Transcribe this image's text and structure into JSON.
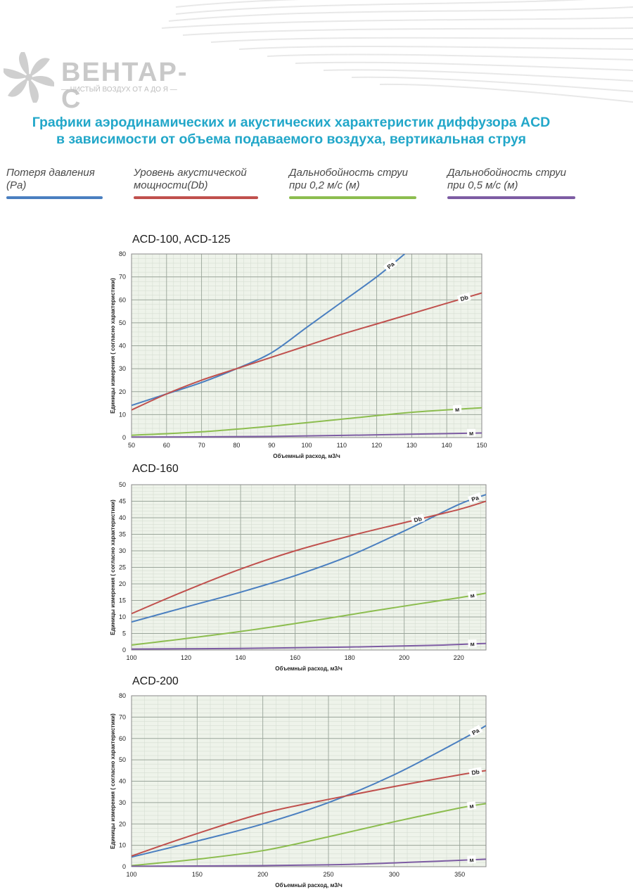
{
  "brand": {
    "name": "ВЕНТАР-С",
    "tagline": "— ЧИСТЫЙ ВОЗДУХ ОТ А ДО Я —"
  },
  "title": {
    "line1": "Графики аэродинамических и акустических характеристик диффузора ACD",
    "line2": "в зависимости от объема подаваемого воздуха, вертикальная струя"
  },
  "legend": [
    {
      "line1": "Потеря давления",
      "line2": "(Pa)",
      "color": "#4a7fc0"
    },
    {
      "line1": "Уровень акустической",
      "line2": "мощности(Db)",
      "color": "#c0504d"
    },
    {
      "line1": "Дальнобойность струи",
      "line2": "при 0,2 м/с (м)",
      "color": "#8cbd4f"
    },
    {
      "line1": "Дальнобойность струи",
      "line2": "при 0,5 м/с (м)",
      "color": "#7d5ca3"
    }
  ],
  "chart_data": [
    {
      "type": "line",
      "title": "ACD-100, ACD-125",
      "xlabel": "Объемный расход, м3/ч",
      "ylabel": "Единицы измерения ( согласно характеристики)",
      "xlim": [
        50,
        150
      ],
      "ylim": [
        0,
        80
      ],
      "xticks": [
        50,
        60,
        70,
        80,
        90,
        100,
        110,
        120,
        130,
        140,
        150
      ],
      "yticks": [
        0,
        10,
        20,
        30,
        40,
        50,
        60,
        70,
        80
      ],
      "grid": true,
      "series": [
        {
          "name": "Pa",
          "color": "#4a7fc0",
          "label_x": 124,
          "x": [
            50,
            60,
            70,
            80,
            90,
            100,
            110,
            120,
            128
          ],
          "y": [
            14,
            19,
            24,
            30,
            37,
            48,
            59,
            70,
            80
          ]
        },
        {
          "name": "Db",
          "color": "#c0504d",
          "label_x": 145,
          "x": [
            50,
            60,
            70,
            80,
            90,
            100,
            110,
            120,
            130,
            140,
            150
          ],
          "y": [
            12,
            19,
            25,
            30,
            35,
            40,
            45,
            49.5,
            54,
            58.5,
            63
          ]
        },
        {
          "name": "м",
          "color": "#8cbd4f",
          "label_x": 143,
          "x": [
            50,
            70,
            90,
            110,
            130,
            150
          ],
          "y": [
            1,
            2.5,
            5,
            8,
            11,
            13
          ]
        },
        {
          "name": "м",
          "color": "#7d5ca3",
          "label_x": 147,
          "x": [
            50,
            90,
            120,
            150
          ],
          "y": [
            0.2,
            0.5,
            1.2,
            2
          ]
        }
      ]
    },
    {
      "type": "line",
      "title": "ACD-160",
      "xlabel": "Объемный расход, м3/ч",
      "ylabel": "Единицы измерения ( согласно характеристики)",
      "xlim": [
        100,
        230
      ],
      "ylim": [
        0,
        50
      ],
      "xticks": [
        100,
        120,
        140,
        160,
        180,
        200,
        220
      ],
      "yticks": [
        0,
        5,
        10,
        15,
        20,
        25,
        30,
        35,
        40,
        45,
        50
      ],
      "grid": true,
      "series": [
        {
          "name": "Pa",
          "color": "#4a7fc0",
          "label_x": 226,
          "x": [
            100,
            120,
            140,
            160,
            180,
            200,
            220,
            230
          ],
          "y": [
            8.5,
            13,
            17.5,
            22.5,
            28.5,
            36,
            44,
            47
          ]
        },
        {
          "name": "Db",
          "color": "#c0504d",
          "label_x": 205,
          "x": [
            100,
            120,
            140,
            160,
            180,
            200,
            220,
            230
          ],
          "y": [
            11,
            18,
            24.5,
            30,
            34.5,
            38.5,
            42.5,
            45
          ]
        },
        {
          "name": "м",
          "color": "#8cbd4f",
          "label_x": 225,
          "x": [
            100,
            130,
            160,
            190,
            220,
            230
          ],
          "y": [
            1.5,
            4.5,
            8,
            12,
            15.8,
            17.2
          ]
        },
        {
          "name": "м",
          "color": "#7d5ca3",
          "label_x": 225,
          "x": [
            100,
            140,
            180,
            210,
            230
          ],
          "y": [
            0.3,
            0.5,
            0.9,
            1.4,
            2
          ]
        }
      ]
    },
    {
      "type": "line",
      "title": "ACD-200",
      "xlabel": "Объемный расход, м3/ч",
      "ylabel": "Единицы измерения ( согласно характеристики)",
      "xlim": [
        100,
        370
      ],
      "ylim": [
        0,
        80
      ],
      "xticks": [
        100,
        150,
        200,
        250,
        300,
        350
      ],
      "yticks": [
        0,
        10,
        20,
        30,
        40,
        50,
        60,
        70,
        80
      ],
      "grid": true,
      "series": [
        {
          "name": "Pa",
          "color": "#4a7fc0",
          "label_x": 362,
          "x": [
            100,
            150,
            200,
            250,
            300,
            350,
            370
          ],
          "y": [
            4.5,
            12,
            20,
            30,
            43,
            59,
            66
          ]
        },
        {
          "name": "Db",
          "color": "#c0504d",
          "label_x": 362,
          "x": [
            100,
            150,
            200,
            250,
            300,
            350,
            370
          ],
          "y": [
            5,
            15.5,
            25,
            31.5,
            37.5,
            43,
            45
          ]
        },
        {
          "name": "м",
          "color": "#8cbd4f",
          "label_x": 359,
          "x": [
            100,
            150,
            200,
            250,
            300,
            350,
            370
          ],
          "y": [
            0.5,
            3.5,
            7.5,
            14,
            21,
            27.5,
            29.5
          ]
        },
        {
          "name": "м",
          "color": "#7d5ca3",
          "label_x": 359,
          "x": [
            100,
            200,
            260,
            310,
            370
          ],
          "y": [
            0.2,
            0.5,
            1,
            2,
            3.5
          ]
        }
      ]
    }
  ]
}
